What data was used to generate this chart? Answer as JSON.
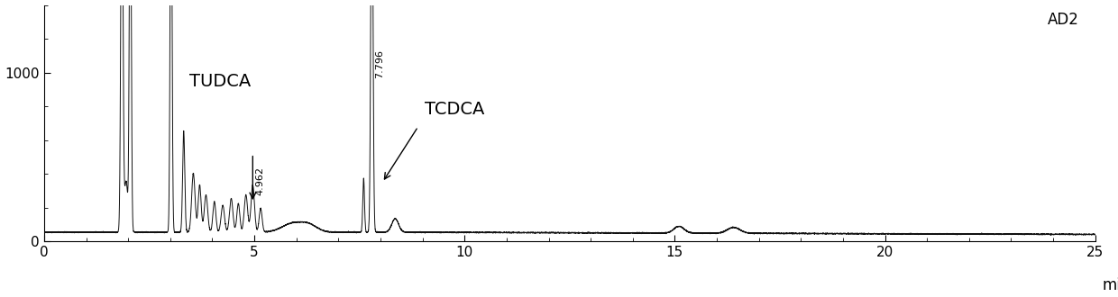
{
  "xlim": [
    0,
    25
  ],
  "ylim": [
    0,
    1400
  ],
  "xlabel": "min",
  "yticks": [
    0,
    1000
  ],
  "xticks": [
    0,
    5,
    10,
    15,
    20,
    25
  ],
  "label_AD2": "AD2",
  "label_TUDCA": "TUDCA",
  "label_TCDCA": "TCDCA",
  "peak_TUDCA_x": 4.962,
  "peak_TCDCA_x": 7.796,
  "baseline": 55,
  "background_color": "#ffffff",
  "line_color": "#111111",
  "figsize": [
    12.4,
    3.3
  ],
  "dpi": 100
}
